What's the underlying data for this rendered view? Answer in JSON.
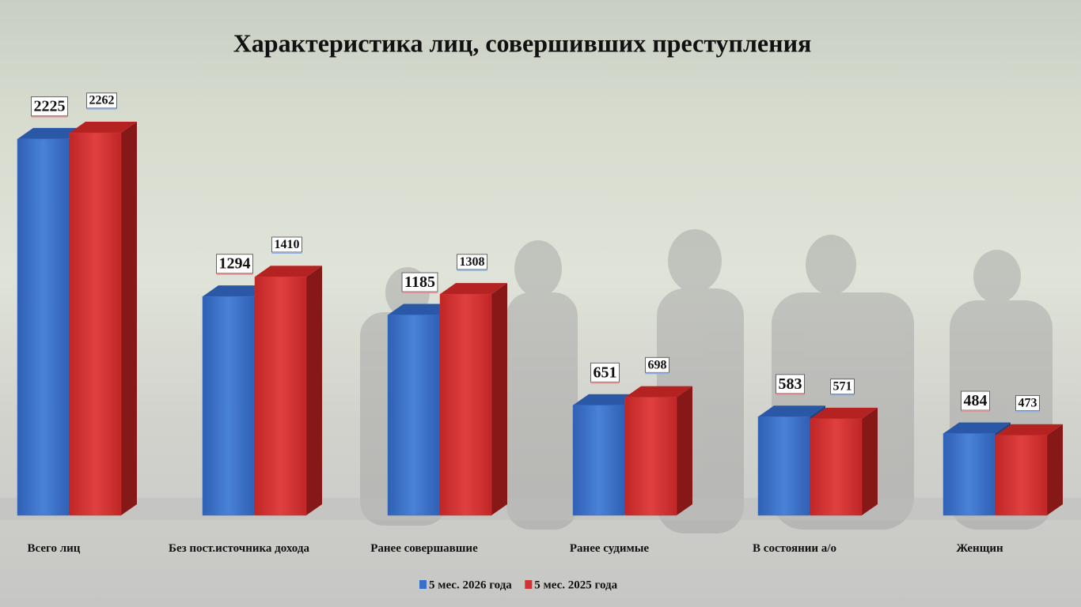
{
  "chart_data": {
    "type": "bar3d",
    "title": "Характеристика лиц, совершивших преступления",
    "categories": [
      "Всего лиц",
      "Без пост.источника дохода",
      "Ранее совершавшие",
      "Ранее судимые",
      "В состоянии а/о",
      "Женщин"
    ],
    "series": [
      {
        "name": "5 мес. 2026 года",
        "color": "#3a6fc8",
        "values": [
          2225,
          1294,
          1185,
          651,
          583,
          484
        ]
      },
      {
        "name": "5 мес. 2025 года",
        "color": "#d23232",
        "values": [
          2262,
          1410,
          1308,
          698,
          571,
          473
        ]
      }
    ],
    "legend": "bottom"
  }
}
